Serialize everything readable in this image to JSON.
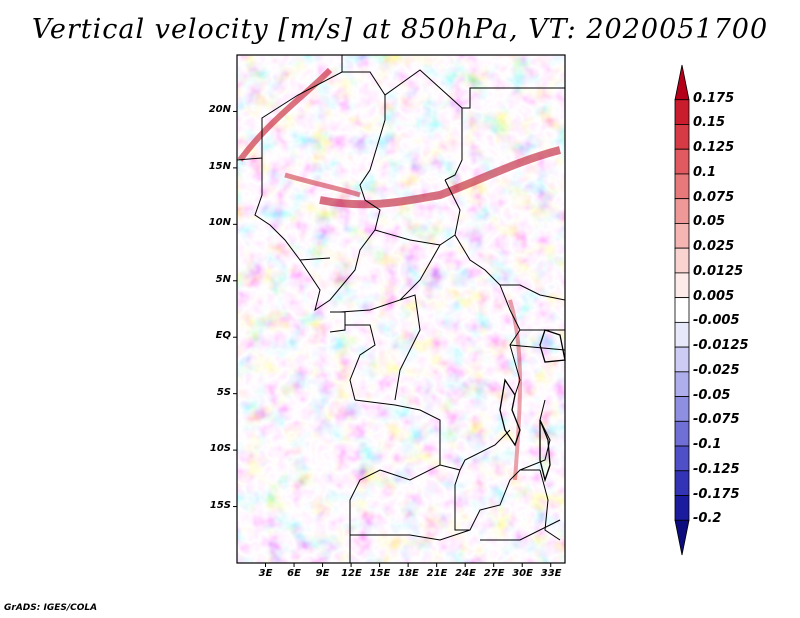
{
  "title": "Vertical velocity [m/s] at 850hPa, VT: 2020051700",
  "credit": "GrADS: IGES/COLA",
  "map": {
    "lat_labels": [
      "20N",
      "15N",
      "10N",
      "5N",
      "EQ",
      "5S",
      "10S",
      "15S"
    ],
    "lat_values": [
      20,
      15,
      10,
      5,
      0,
      -5,
      -10,
      -15
    ],
    "lon_labels": [
      "3E",
      "6E",
      "9E",
      "12E",
      "15E",
      "18E",
      "21E",
      "24E",
      "27E",
      "30E",
      "33E"
    ],
    "lon_values": [
      3,
      6,
      9,
      12,
      15,
      18,
      21,
      24,
      27,
      30,
      33
    ],
    "lat_range": [
      -20,
      25
    ],
    "lon_range": [
      0,
      34.5
    ]
  },
  "colorbar": {
    "labels": [
      "0.175",
      "0.15",
      "0.125",
      "0.1",
      "0.075",
      "0.05",
      "0.025",
      "0.0125",
      "0.005",
      "-0.005",
      "-0.0125",
      "-0.025",
      "-0.05",
      "-0.075",
      "-0.1",
      "-0.125",
      "-0.175",
      "-0.2"
    ],
    "colors": [
      "#b5001a",
      "#c91c2c",
      "#d63a45",
      "#e05a5f",
      "#e8797b",
      "#ef9898",
      "#f4b5b3",
      "#f8d3d0",
      "#fcebe9",
      "#ffffff",
      "#e8e8fb",
      "#ccccf4",
      "#aeaeec",
      "#8f8fe1",
      "#6f6fd5",
      "#4f4fc8",
      "#3333b5",
      "#1b1b9e",
      "#0c0c7e"
    ]
  }
}
